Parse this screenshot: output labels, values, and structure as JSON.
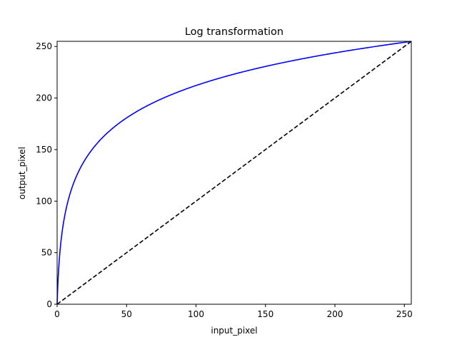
{
  "chart_data": {
    "type": "line",
    "title": "Log transformation",
    "xlabel": "input_pixel",
    "ylabel": "output_pixel",
    "xlim": [
      0,
      255
    ],
    "ylim": [
      0,
      255
    ],
    "x_ticks": [
      0,
      50,
      100,
      150,
      200,
      250
    ],
    "y_ticks": [
      0,
      50,
      100,
      150,
      200,
      250
    ],
    "grid": false,
    "series": [
      {
        "style": "solid",
        "color": "#0000ff",
        "x": [
          0,
          1,
          2,
          3,
          4,
          5,
          6,
          8,
          10,
          12,
          15,
          20,
          25,
          30,
          40,
          50,
          60,
          70,
          80,
          100,
          120,
          140,
          160,
          180,
          200,
          220,
          240,
          255
        ],
        "y": [
          0,
          32,
          50.5,
          63.8,
          74,
          82.4,
          89.5,
          101.3,
          110.7,
          118.6,
          128.3,
          140.6,
          150.3,
          158.3,
          170.8,
          180.5,
          188.4,
          195.1,
          200.9,
          210.7,
          218.7,
          225.4,
          231.2,
          236.4,
          241,
          245.2,
          249,
          254.9
        ]
      },
      {
        "style": "dashed",
        "color": "#000000",
        "x": [
          0,
          255
        ],
        "y": [
          0,
          255
        ]
      }
    ]
  }
}
